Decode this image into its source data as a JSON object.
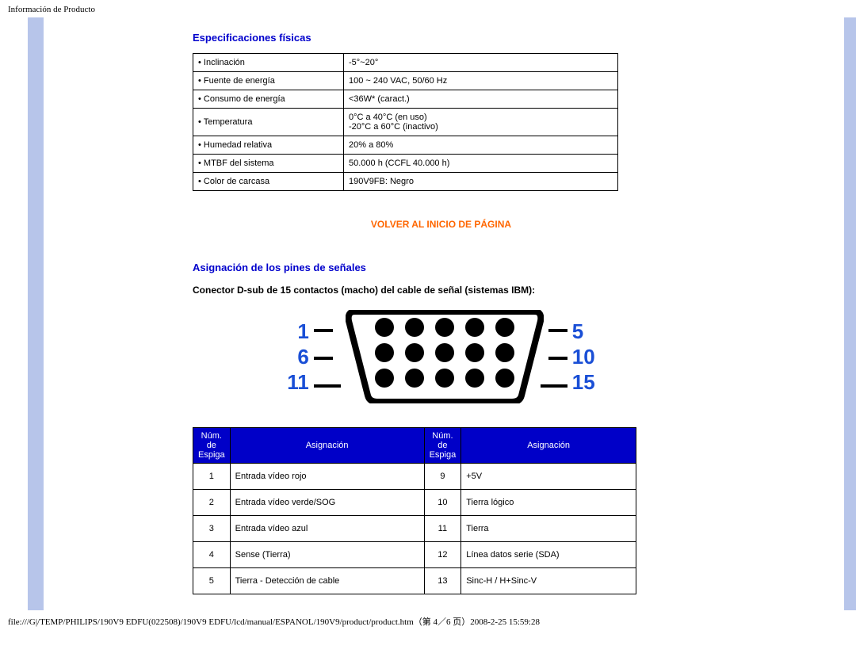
{
  "page_header": "Información de Producto",
  "footer_text": "file:///G|/TEMP/PHILIPS/190V9 EDFU(022508)/190V9 EDFU/lcd/manual/ESPANOL/190V9/product/product.htm（第 4／6 页）2008-2-25 15:59:28",
  "sections": {
    "phys_title": "Especificaciones físicas",
    "pins_title": "Asignación de los pines de señales",
    "connector_caption": "Conector D-sub de 15 contactos (macho) del cable de señal (sistemas IBM):"
  },
  "back_to_top": "VOLVER AL INICIO DE PÁGINA",
  "phys_table": [
    [
      "• Inclinación",
      "-5°~20°"
    ],
    [
      "• Fuente de energía",
      "100 ~ 240 VAC, 50/60 Hz"
    ],
    [
      "• Consumo de energía",
      "<36W* (caract.)"
    ],
    [
      "• Temperatura",
      "0°C a 40°C (en uso)\n-20°C a 60°C (inactivo)"
    ],
    [
      "• Humedad relativa",
      "20% a 80%"
    ],
    [
      "• MTBF del sistema",
      "50.000 h (CCFL 40.000 h)"
    ],
    [
      "• Color de carcasa",
      "190V9FB: Negro\n "
    ]
  ],
  "connector_labels": {
    "left": [
      "1",
      "6",
      "11"
    ],
    "right": [
      "5",
      "10",
      "15"
    ]
  },
  "pin_headers": {
    "num": "Núm. de Espiga",
    "assign": "Asignación"
  },
  "pin_rows": [
    {
      "l": "1",
      "la": "Entrada vídeo rojo",
      "r": "9",
      "ra": "+5V"
    },
    {
      "l": "2",
      "la": "Entrada vídeo verde/SOG",
      "r": "10",
      "ra": "Tierra lógico"
    },
    {
      "l": "3",
      "la": "Entrada vídeo azul",
      "r": "11",
      "ra": "Tierra"
    },
    {
      "l": "4",
      "la": "Sense (Tierra)",
      "r": "12",
      "ra": "Línea datos serie (SDA)"
    },
    {
      "l": "5",
      "la": "Tierra - Detección de cable",
      "r": "13",
      "ra": "Sinc-H / H+Sinc-V"
    }
  ],
  "colors": {
    "title": "#0000cc",
    "link": "#ff6600",
    "pin_header_bg": "#0000c8",
    "rail": "#b7c5ea",
    "diagram_num": "#1a4fd6"
  }
}
